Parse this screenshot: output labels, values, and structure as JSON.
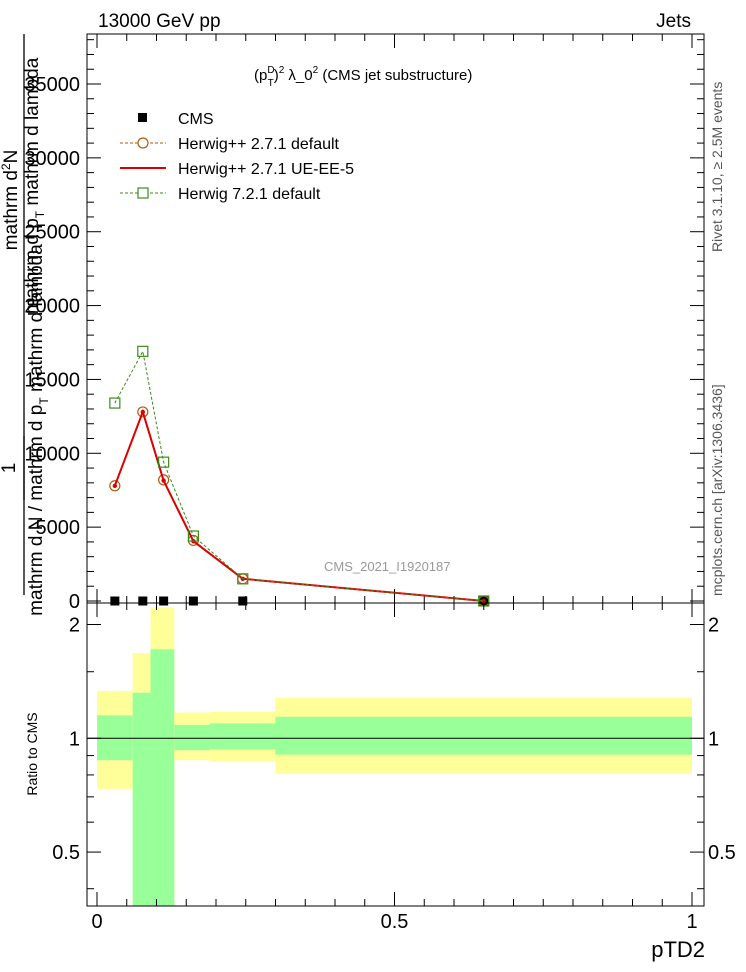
{
  "header": {
    "left_label": "13000 GeV pp",
    "right_label": "Jets"
  },
  "side_labels": {
    "rivet": "Rivet 3.1.10, ≥ 2.5M events",
    "mcplots": "mcplots.cern.ch [arXiv:1306.3436]"
  },
  "watermark": "CMS_2021_I1920187",
  "chart_data": [
    {
      "type": "line",
      "title_parts": {
        "base": "(p",
        "sub1": "T",
        "sup1": "D",
        "sup2": "2",
        "rest": " λ_0",
        "sup3": "2",
        "tail": " (CMS jet substructure)"
      },
      "ylabel_parts": {
        "frac_one": "1",
        "num_a": "mathrm d",
        "num_sup": "2",
        "num_b": "N",
        "den_a": "mathrm d N / mathrm d p",
        "den_sub": "T",
        "den_b": " mathrm d lambda",
        "mid_a": "mathrm d p",
        "mid_sub": "T",
        "mid_b": " mathrm d lambda"
      },
      "xlabel": "pTD2",
      "xlim": [
        0,
        1
      ],
      "ylim": [
        0,
        38500
      ],
      "x_ticks": [
        0,
        0.5,
        1
      ],
      "y_ticks": [
        0,
        5000,
        10000,
        15000,
        20000,
        25000,
        30000,
        35000
      ],
      "y_tick_labels": [
        "0",
        "5000",
        "10000",
        "15000",
        "20000",
        "25000",
        "30000",
        "35000"
      ],
      "legend": {
        "placement": "top-left"
      },
      "series": [
        {
          "name": "CMS",
          "style": "data-markers",
          "color": "#000000",
          "x": [
            0.03,
            0.077,
            0.112,
            0.162,
            0.245,
            0.65
          ],
          "y": [
            0,
            0,
            0,
            0,
            0,
            0
          ]
        },
        {
          "name": "Herwig++ 2.7.1 default",
          "style": "circle-dashed",
          "color": "#b05a10",
          "x": [
            0.03,
            0.077,
            0.112,
            0.162,
            0.245,
            0.65
          ],
          "y": [
            7800,
            12800,
            8200,
            4100,
            1500,
            0
          ]
        },
        {
          "name": "Herwig++ 2.7.1 UE-EE-5",
          "style": "solid",
          "color": "#dd0000",
          "x": [
            0.03,
            0.077,
            0.112,
            0.162,
            0.245,
            0.65
          ],
          "y": [
            7800,
            12800,
            8150,
            4050,
            1500,
            0
          ]
        },
        {
          "name": "Herwig 7.2.1 default",
          "style": "square-dashed",
          "color": "#3a8a1a",
          "x": [
            0.03,
            0.077,
            0.112,
            0.162,
            0.245,
            0.65
          ],
          "y": [
            13400,
            16900,
            9400,
            4400,
            1500,
            0
          ]
        }
      ]
    },
    {
      "type": "area",
      "ylabel": "Ratio to CMS",
      "xlim": [
        0,
        1
      ],
      "ylim": [
        0.36,
        2.28
      ],
      "y_scale": "log",
      "y_ticks": [
        0.5,
        1,
        2
      ],
      "y_tick_labels": [
        "0.5",
        "1",
        "2"
      ],
      "x_ticks": [
        0,
        0.5,
        1
      ],
      "x_tick_labels": [
        "0",
        "0.5",
        "1"
      ],
      "reference_line": 1,
      "bands": {
        "bin_edges": [
          0,
          0.06,
          0.09,
          0.13,
          0.19,
          0.3,
          1.0
        ],
        "inner_low": [
          0.875,
          0.0,
          0.0,
          0.93,
          0.935,
          0.905
        ],
        "inner_high": [
          1.15,
          1.32,
          1.72,
          1.085,
          1.095,
          1.14
        ],
        "outer_low": [
          0.735,
          0.0,
          0.0,
          0.875,
          0.87,
          0.805
        ],
        "outer_high": [
          1.335,
          1.68,
          2.22,
          1.17,
          1.175,
          1.28
        ],
        "inner_color": "#99ff99",
        "outer_color": "#ffff99"
      }
    }
  ]
}
